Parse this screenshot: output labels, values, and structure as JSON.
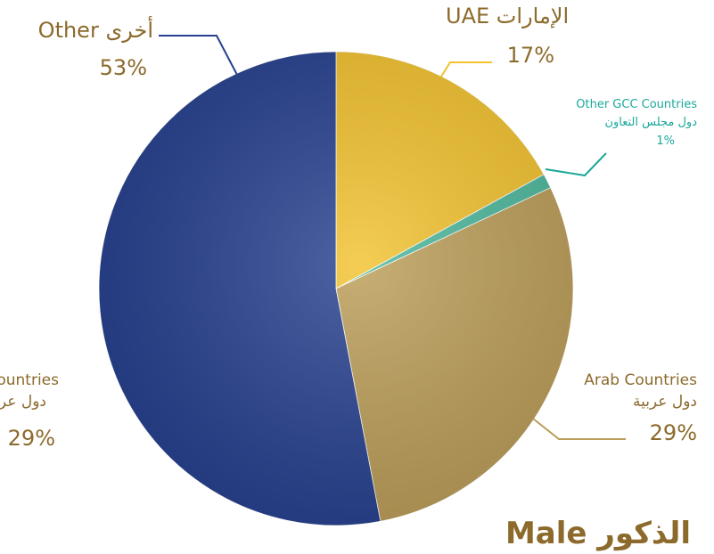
{
  "chart_data": {
    "type": "pie",
    "title": "الذكور Male",
    "categories": [
      "الإمارات UAE",
      "Other GCC Countries",
      "Arab Countries",
      "أخرى Other"
    ],
    "category_subtitles": [
      null,
      "دول مجلس التعاون",
      "دول عربية",
      null
    ],
    "values": [
      17,
      1,
      29,
      53
    ],
    "value_labels": [
      "17%",
      "1%",
      "29%",
      "53%"
    ],
    "colors": [
      "#f2c22f",
      "#4cb79c",
      "#bb9d58",
      "#27418f"
    ],
    "partial_label": {
      "name": "Arab Countries",
      "subtitle": "دول عربية",
      "value_label": "29%"
    }
  }
}
